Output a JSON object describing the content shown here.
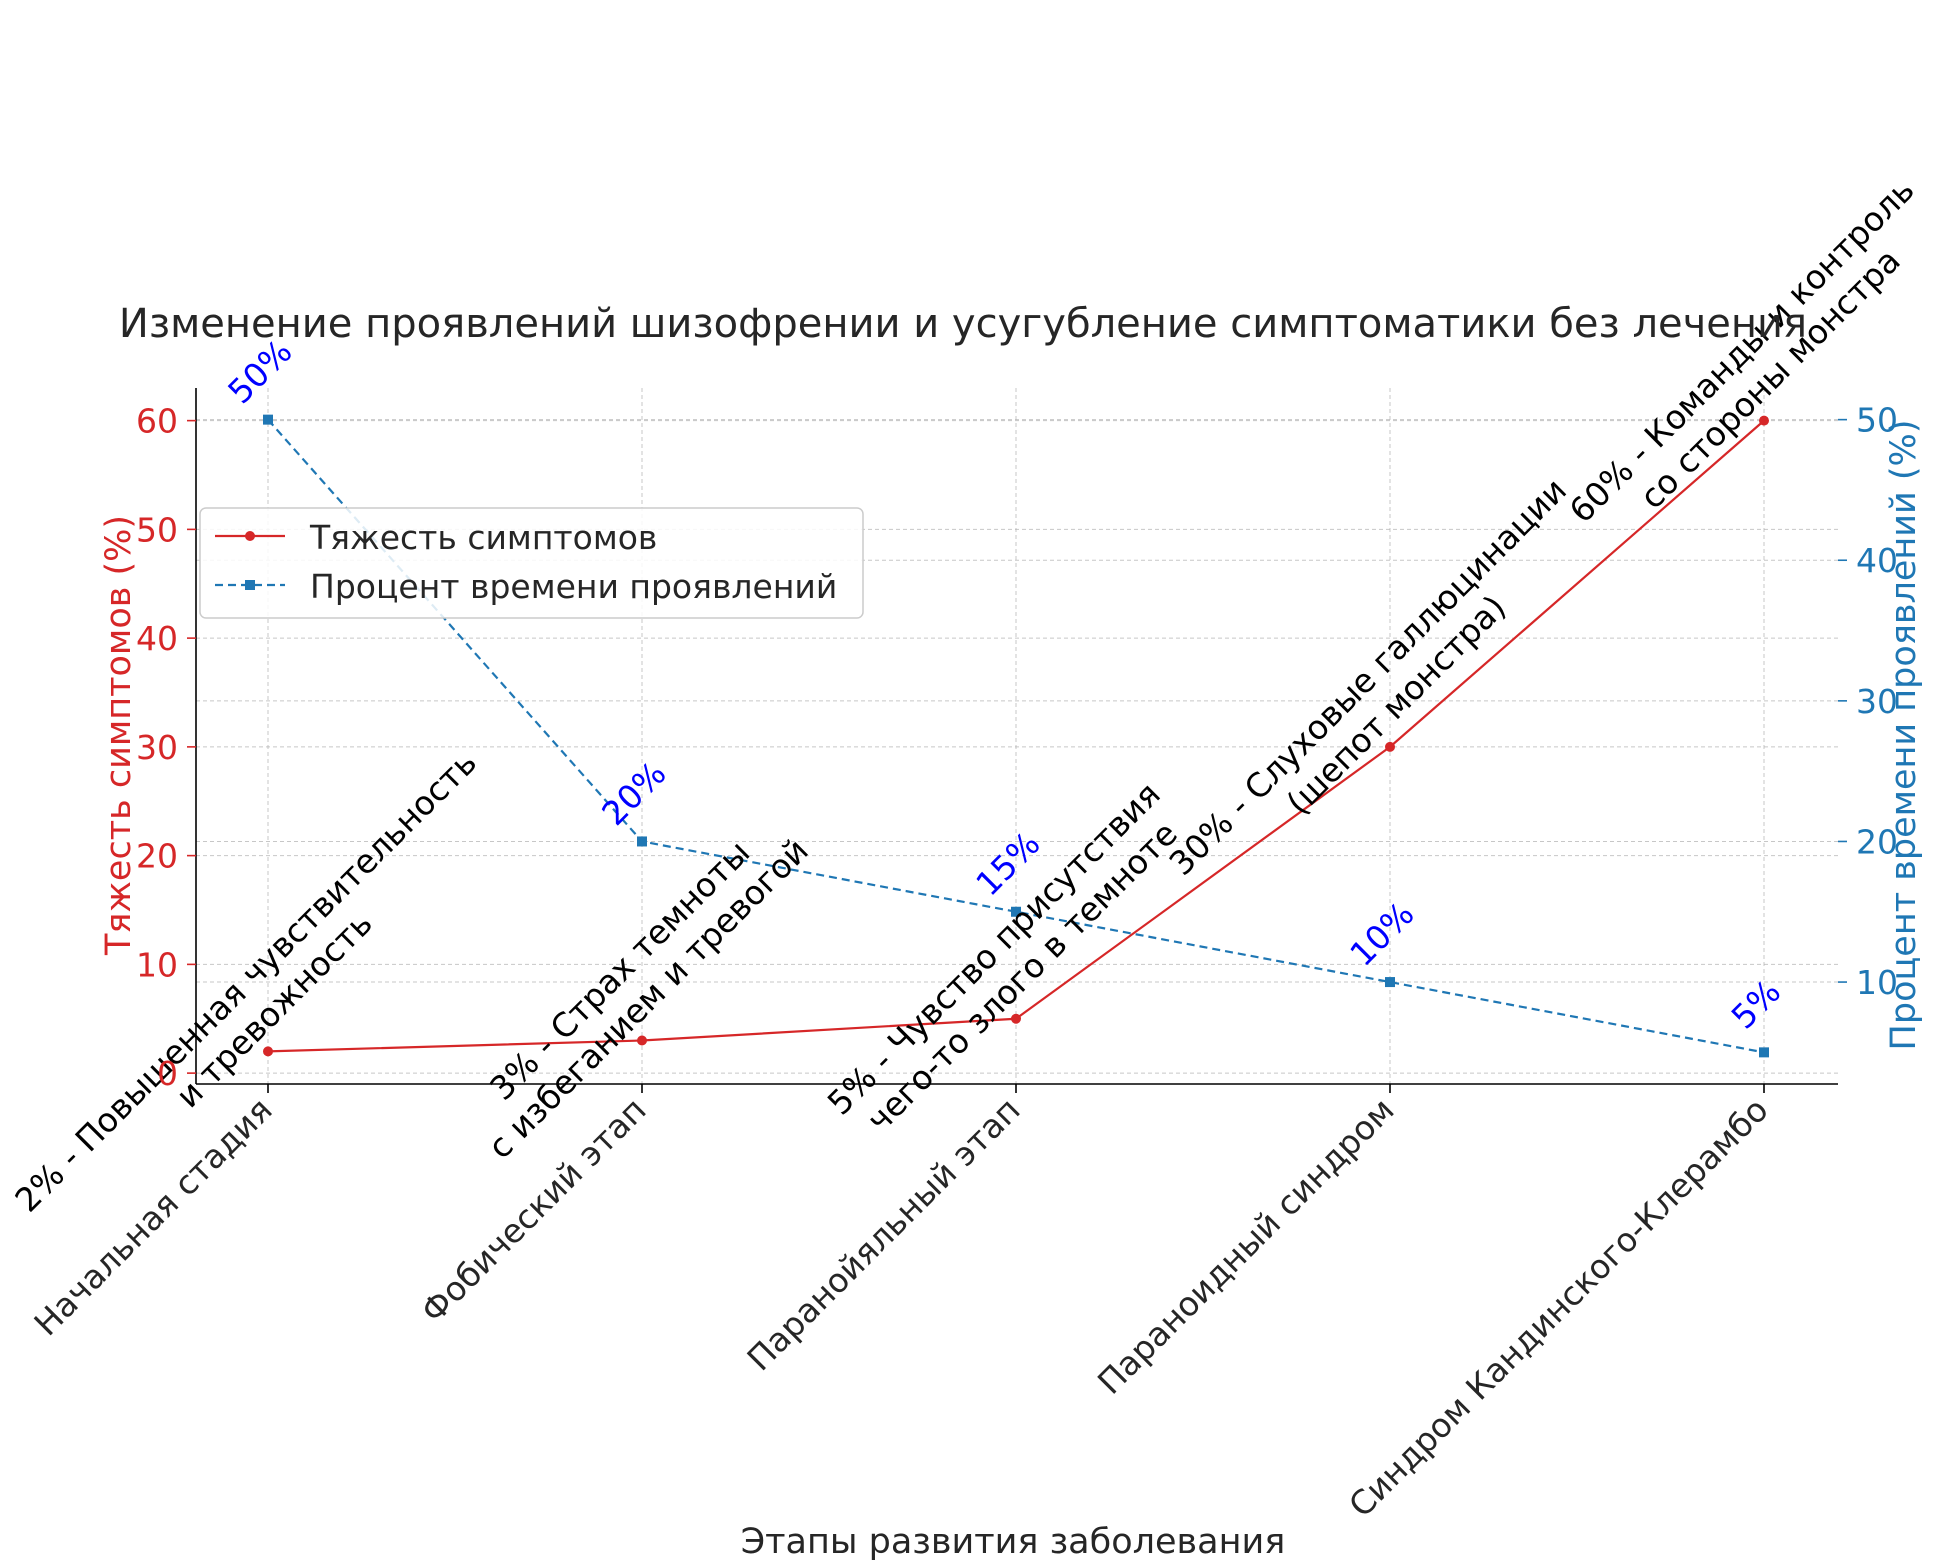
{
  "chart_data": {
    "type": "line",
    "title": "Изменение проявлений шизофрении и усугубление симптоматики без лечения",
    "xlabel": "Этапы развития заболевания",
    "ylabel_left": "Тяжесть симптомов (%)",
    "ylabel_right": "Процент времени проявлений (%)",
    "categories": [
      "Начальная стадия",
      "Фобический этап",
      "Паранойяльный этап",
      "Параноидный синдром",
      "Синдром Кандинского-Клерамбо"
    ],
    "left_axis": {
      "ylim": [
        -1,
        63
      ],
      "ticks": [
        "0",
        "10",
        "20",
        "30",
        "40",
        "50",
        "60"
      ],
      "color": "#d62728"
    },
    "right_axis": {
      "ylim": [
        2.75,
        52.25
      ],
      "ticks": [
        "10",
        "20",
        "30",
        "40",
        "50"
      ],
      "color": "#1f77b4"
    },
    "series": [
      {
        "name": "Тяжесть симптомов",
        "axis": "left",
        "color": "#d62728",
        "line_style": "solid",
        "marker": "circle",
        "values": [
          2,
          3,
          5,
          30,
          60
        ],
        "annotations": [
          [
            "2% - Повышенная чувствительность",
            "и тревожность"
          ],
          [
            "3% - Страх темноты",
            "с избеганием и тревогой"
          ],
          [
            "5% - Чувство присутствия",
            "чего-то злого в темноте"
          ],
          [
            "30% - Слуховые галлюцинации",
            "(шепот монстра)"
          ],
          [
            "60% - Команды и контроль",
            "со стороны монстра"
          ]
        ]
      },
      {
        "name": "Процент времени проявлений",
        "axis": "right",
        "color": "#1f77b4",
        "line_style": "dashed",
        "marker": "square",
        "values": [
          50,
          20,
          15,
          10,
          5
        ],
        "labels": [
          "50%",
          "20%",
          "15%",
          "10%",
          "5%"
        ],
        "label_color": "#0000ff"
      }
    ],
    "grid": true,
    "legend_position": "upper-left"
  }
}
